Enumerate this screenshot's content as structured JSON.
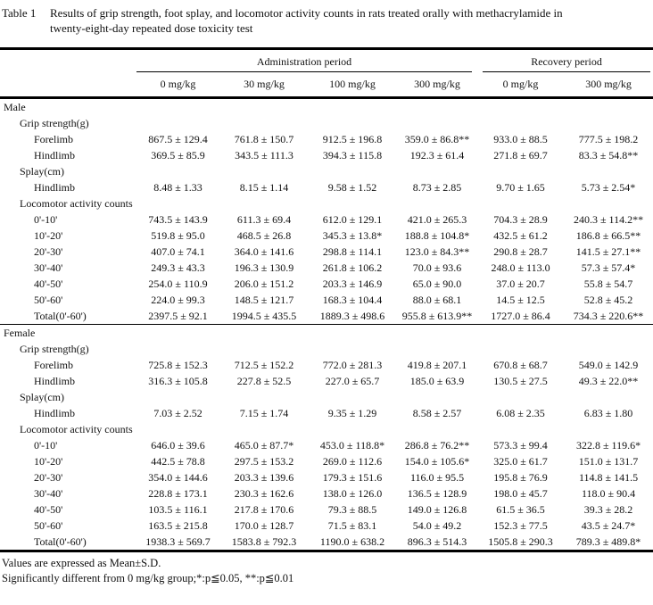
{
  "caption": {
    "label": "Table 1",
    "text": "Results of grip strength, foot splay, and locomotor activity counts in rats treated orally with methacrylamide in twenty-eight-day repeated dose toxicity test"
  },
  "header": {
    "groups": [
      {
        "label": "Administration period",
        "span": 4
      },
      {
        "label": "Recovery period",
        "span": 2
      }
    ],
    "doses": [
      "0 mg/kg",
      "30 mg/kg",
      "100 mg/kg",
      "300 mg/kg",
      "0 mg/kg",
      "300 mg/kg"
    ]
  },
  "sections": [
    {
      "name": "Male",
      "rows": [
        {
          "label": "Grip strength(g)",
          "indent": 1,
          "values": []
        },
        {
          "label": "Forelimb",
          "indent": 2,
          "values": [
            "867.5 ± 129.4",
            "761.8 ± 150.7",
            "912.5 ± 196.8",
            "359.0 ± 86.8**",
            "933.0 ± 88.5",
            "777.5 ± 198.2"
          ]
        },
        {
          "label": "Hindlimb",
          "indent": 2,
          "values": [
            "369.5 ± 85.9",
            "343.5 ± 111.3",
            "394.3 ± 115.8",
            "192.3 ± 61.4",
            "271.8 ± 69.7",
            "83.3 ± 54.8**"
          ]
        },
        {
          "label": "Splay(cm)",
          "indent": 1,
          "values": []
        },
        {
          "label": "Hindlimb",
          "indent": 2,
          "values": [
            "8.48 ± 1.33",
            "8.15 ± 1.14",
            "9.58 ± 1.52",
            "8.73 ± 2.85",
            "9.70 ± 1.65",
            "5.73 ± 2.54*"
          ]
        },
        {
          "label": "Locomotor activity counts",
          "indent": 1,
          "values": []
        },
        {
          "label": "0'-10'",
          "indent": 2,
          "values": [
            "743.5 ± 143.9",
            "611.3 ± 69.4",
            "612.0 ± 129.1",
            "421.0 ± 265.3",
            "704.3 ± 28.9",
            "240.3 ± 114.2**"
          ]
        },
        {
          "label": "10'-20'",
          "indent": 2,
          "values": [
            "519.8 ± 95.0",
            "468.5 ± 26.8",
            "345.3 ± 13.8*",
            "188.8 ± 104.8*",
            "432.5 ± 61.2",
            "186.8 ± 66.5**"
          ]
        },
        {
          "label": "20'-30'",
          "indent": 2,
          "values": [
            "407.0 ± 74.1",
            "364.0 ± 141.6",
            "298.8 ± 114.1",
            "123.0 ± 84.3**",
            "290.8 ± 28.7",
            "141.5 ± 27.1**"
          ]
        },
        {
          "label": "30'-40'",
          "indent": 2,
          "values": [
            "249.3 ± 43.3",
            "196.3 ± 130.9",
            "261.8 ± 106.2",
            "70.0 ± 93.6",
            "248.0 ± 113.0",
            "57.3 ± 57.4*"
          ]
        },
        {
          "label": "40'-50'",
          "indent": 2,
          "values": [
            "254.0 ± 110.9",
            "206.0 ± 151.2",
            "203.3 ± 146.9",
            "65.0 ± 90.0",
            "37.0 ± 20.7",
            "55.8 ± 54.7"
          ]
        },
        {
          "label": "50'-60'",
          "indent": 2,
          "values": [
            "224.0 ± 99.3",
            "148.5 ± 121.7",
            "168.3 ± 104.4",
            "88.0 ± 68.1",
            "14.5 ± 12.5",
            "52.8 ± 45.2"
          ]
        },
        {
          "label": "Total(0'-60')",
          "indent": 2,
          "values": [
            "2397.5 ± 92.1",
            "1994.5 ± 435.5",
            "1889.3 ± 498.6",
            "955.8 ± 613.9**",
            "1727.0 ± 86.4",
            "734.3 ± 220.6**"
          ]
        }
      ]
    },
    {
      "name": "Female",
      "rows": [
        {
          "label": "Grip strength(g)",
          "indent": 1,
          "values": []
        },
        {
          "label": "Forelimb",
          "indent": 2,
          "values": [
            "725.8 ± 152.3",
            "712.5 ± 152.2",
            "772.0 ± 281.3",
            "419.8 ± 207.1",
            "670.8 ± 68.7",
            "549.0 ± 142.9"
          ]
        },
        {
          "label": "Hindlimb",
          "indent": 2,
          "values": [
            "316.3 ± 105.8",
            "227.8 ± 52.5",
            "227.0 ± 65.7",
            "185.0 ± 63.9",
            "130.5 ± 27.5",
            "49.3 ± 22.0**"
          ]
        },
        {
          "label": "Splay(cm)",
          "indent": 1,
          "values": []
        },
        {
          "label": "Hindlimb",
          "indent": 2,
          "values": [
            "7.03 ± 2.52",
            "7.15 ± 1.74",
            "9.35 ± 1.29",
            "8.58 ± 2.57",
            "6.08 ± 2.35",
            "6.83 ± 1.80"
          ]
        },
        {
          "label": "Locomotor activity counts",
          "indent": 1,
          "values": []
        },
        {
          "label": "0'-10'",
          "indent": 2,
          "values": [
            "646.0 ± 39.6",
            "465.0 ± 87.7*",
            "453.0 ± 118.8*",
            "286.8 ± 76.2**",
            "573.3 ± 99.4",
            "322.8 ± 119.6*"
          ]
        },
        {
          "label": "10'-20'",
          "indent": 2,
          "values": [
            "442.5 ± 78.8",
            "297.5 ± 153.2",
            "269.0 ± 112.6",
            "154.0 ± 105.6*",
            "325.0 ± 61.7",
            "151.0 ± 131.7"
          ]
        },
        {
          "label": "20'-30'",
          "indent": 2,
          "values": [
            "354.0 ± 144.6",
            "203.3 ± 139.6",
            "179.3 ± 151.6",
            "116.0 ± 95.5",
            "195.8 ± 76.9",
            "114.8 ± 141.5"
          ]
        },
        {
          "label": "30'-40'",
          "indent": 2,
          "values": [
            "228.8 ± 173.1",
            "230.3 ± 162.6",
            "138.0 ± 126.0",
            "136.5 ± 128.9",
            "198.0 ± 45.7",
            "118.0 ± 90.4"
          ]
        },
        {
          "label": "40'-50'",
          "indent": 2,
          "values": [
            "103.5 ± 116.1",
            "217.8 ± 170.6",
            "79.3 ± 88.5",
            "149.0 ± 126.8",
            "61.5 ± 36.5",
            "39.3 ± 28.2"
          ]
        },
        {
          "label": "50'-60'",
          "indent": 2,
          "values": [
            "163.5 ± 215.8",
            "170.0 ± 128.7",
            "71.5 ± 83.1",
            "54.0 ± 49.2",
            "152.3 ± 77.5",
            "43.5 ± 24.7*"
          ]
        },
        {
          "label": "Total(0'-60')",
          "indent": 2,
          "values": [
            "1938.3 ± 569.7",
            "1583.8 ± 792.3",
            "1190.0 ± 638.2",
            "896.3 ± 514.3",
            "1505.8 ± 290.3",
            "789.3 ± 489.8*"
          ]
        }
      ]
    }
  ],
  "footnotes": [
    "Values are expressed as Mean±S.D.",
    "Significantly different from 0 mg/kg group;*:p≦0.05, **:p≦0.01"
  ]
}
